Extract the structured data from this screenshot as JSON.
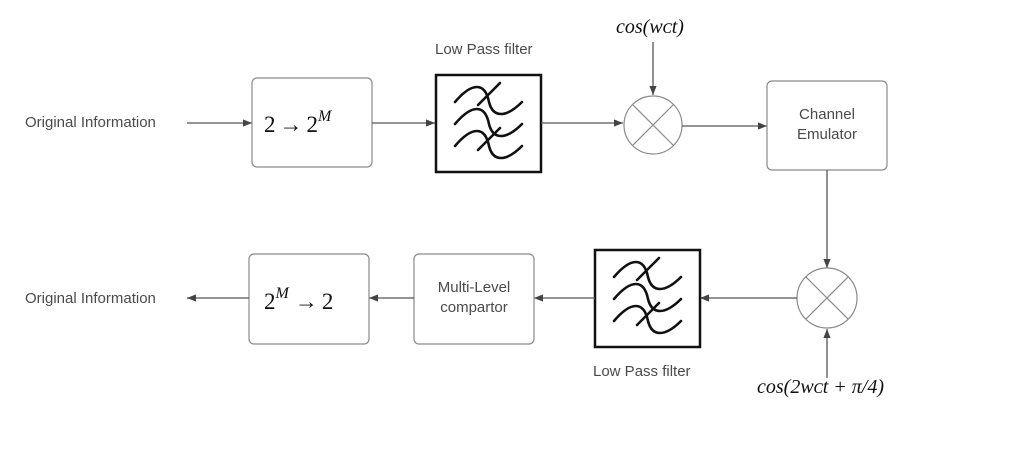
{
  "input_label": "Original Information",
  "output_label": "Original Information",
  "upconverter": {
    "base": "2",
    "arrow": "→",
    "target": "2",
    "exponent": "M"
  },
  "downconverter": {
    "base": "2",
    "exponent": "M",
    "arrow": "→",
    "target": "2"
  },
  "lpf_top_label": "Low Pass filter",
  "lpf_bottom_label": "Low Pass filter",
  "carrier_top": "cos(wᴄt)",
  "carrier_bottom": "cos(2wᴄt + π/4)",
  "channel": {
    "line1": "Channel",
    "line2": "Emulator"
  },
  "comparator": {
    "line1": "Multi-Level",
    "line2": "compartor"
  }
}
